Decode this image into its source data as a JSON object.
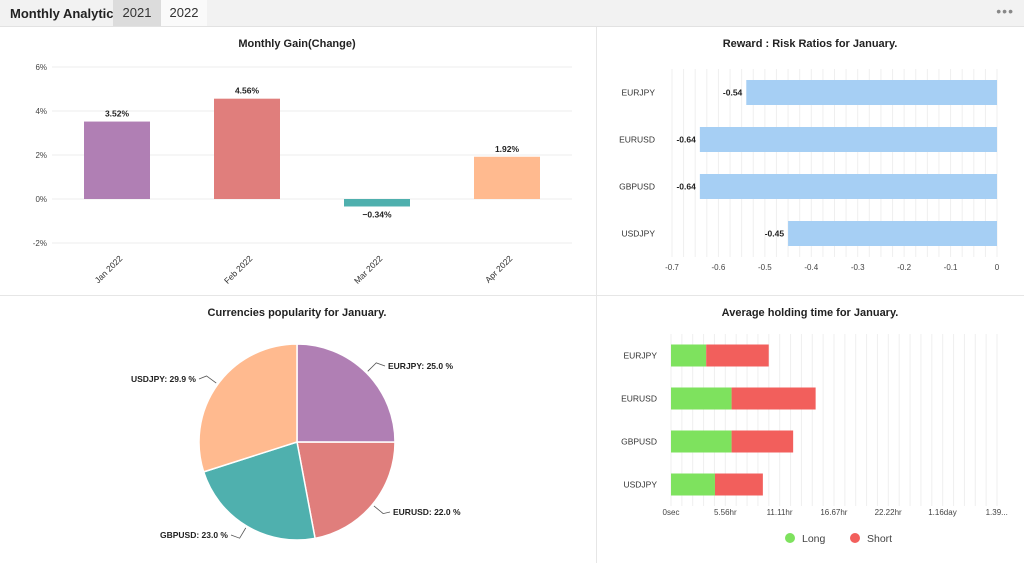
{
  "header": {
    "title": "Monthly Analytics",
    "tabs": [
      {
        "label": "2021"
      },
      {
        "label": "2022"
      }
    ],
    "more_icon": "ellipsis-icon"
  },
  "chart_data": [
    {
      "type": "bar",
      "title": "Monthly Gain(Change)",
      "categories": [
        "Jan 2022",
        "Feb 2022",
        "Mar 2022",
        "Apr 2022"
      ],
      "values": [
        3.52,
        4.56,
        -0.34,
        1.92
      ],
      "value_labels": [
        "3.52%",
        "4.56%",
        "−0.34%",
        "1.92%"
      ],
      "colors": [
        "#b07fb4",
        "#e07e7c",
        "#4fb0ae",
        "#ffba8f"
      ],
      "ylim": [
        -2,
        6
      ],
      "yticks": [
        6,
        4,
        2,
        0,
        -2
      ],
      "ytick_labels": [
        "6%",
        "4%",
        "2%",
        "0%",
        "-2%"
      ],
      "grid": true
    },
    {
      "type": "bar",
      "orientation": "horizontal",
      "title": "Reward : Risk Ratios for January.",
      "categories": [
        "EURJPY",
        "EURUSD",
        "GBPUSD",
        "USDJPY"
      ],
      "values": [
        -0.54,
        -0.64,
        -0.64,
        -0.45
      ],
      "value_labels": [
        "-0.54",
        "-0.64",
        "-0.64",
        "-0.45"
      ],
      "color": "#a6cff4",
      "xlim": [
        -0.7,
        0
      ],
      "xticks": [
        -0.7,
        -0.6,
        -0.5,
        -0.4,
        -0.3,
        -0.2,
        -0.1,
        0
      ],
      "xtick_labels": [
        "-0.7",
        "-0.6",
        "-0.5",
        "-0.4",
        "-0.3",
        "-0.2",
        "-0.1",
        "0"
      ],
      "grid": true
    },
    {
      "type": "pie",
      "title": "Currencies popularity for January.",
      "slices": [
        {
          "name": "EURJPY",
          "value": 25.0,
          "label": "EURJPY: 25.0 %",
          "color": "#b07fb4"
        },
        {
          "name": "EURUSD",
          "value": 22.0,
          "label": "EURUSD: 22.0 %",
          "color": "#e07e7c"
        },
        {
          "name": "GBPUSD",
          "value": 23.0,
          "label": "GBPUSD: 23.0 %",
          "color": "#4fb0ae"
        },
        {
          "name": "USDJPY",
          "value": 29.9,
          "label": "USDJPY: 29.9 %",
          "color": "#ffba8f"
        }
      ]
    },
    {
      "type": "bar",
      "orientation": "horizontal",
      "stacked": true,
      "title": "Average holding time for January.",
      "categories": [
        "EURJPY",
        "EURUSD",
        "GBPUSD",
        "USDJPY"
      ],
      "x_unit": "hours",
      "series": [
        {
          "name": "Long",
          "color": "#7ee25e",
          "values": [
            3.6,
            6.2,
            6.2,
            4.5
          ]
        },
        {
          "name": "Short",
          "color": "#f25f5c",
          "values": [
            6.4,
            8.6,
            6.3,
            4.9
          ]
        }
      ],
      "xlim": [
        0,
        33.36
      ],
      "xticks": [
        0,
        5.56,
        11.11,
        16.67,
        22.22,
        27.78,
        33.33
      ],
      "xtick_labels": [
        "0sec",
        "5.56hr",
        "11.11hr",
        "16.67hr",
        "22.22hr",
        "1.16day",
        "1.39..."
      ],
      "legend": "bottom",
      "grid": true
    }
  ]
}
